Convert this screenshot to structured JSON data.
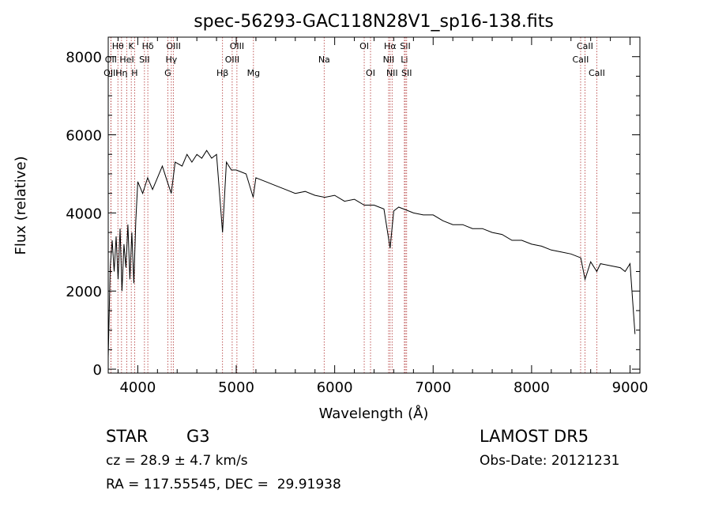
{
  "chart_data": {
    "type": "line",
    "title": "spec-56293-GAC118N28V1_sp16-138.fits",
    "xlabel": "Wavelength (Å)",
    "ylabel": "Flux (relative)",
    "xlim": [
      3700,
      9100
    ],
    "ylim": [
      -100,
      8500
    ],
    "x_ticks": [
      4000,
      5000,
      6000,
      7000,
      8000,
      9000
    ],
    "x_tick_labels": [
      "4000",
      "5000",
      "6000",
      "7000",
      "8000",
      "9000"
    ],
    "y_ticks": [
      0,
      2000,
      4000,
      6000,
      8000
    ],
    "y_tick_labels": [
      "0",
      "2000",
      "4000",
      "6000",
      "8000"
    ],
    "line_color": "#000000",
    "marker_color": "#b03030",
    "series": [
      {
        "x": [
          3700,
          3720,
          3740,
          3760,
          3780,
          3800,
          3820,
          3840,
          3860,
          3880,
          3900,
          3920,
          3940,
          3960,
          3980,
          4000,
          4050,
          4100,
          4150,
          4200,
          4250,
          4300,
          4340,
          4380,
          4450,
          4500,
          4550,
          4600,
          4650,
          4700,
          4750,
          4800,
          4861,
          4900,
          4950,
          5000,
          5100,
          5172,
          5200,
          5300,
          5400,
          5500,
          5600,
          5700,
          5800,
          5900,
          6000,
          6100,
          6200,
          6300,
          6400,
          6500,
          6563,
          6600,
          6650,
          6700,
          6800,
          6900,
          7000,
          7100,
          7200,
          7300,
          7400,
          7500,
          7600,
          7700,
          7800,
          7900,
          8000,
          8100,
          8200,
          8300,
          8400,
          8500,
          8542,
          8600,
          8662,
          8700,
          8800,
          8900,
          8950,
          9000,
          9050
        ],
        "y": [
          300,
          2600,
          3300,
          2500,
          3400,
          2300,
          3600,
          2000,
          3200,
          2600,
          3700,
          2300,
          3500,
          2200,
          3800,
          4800,
          4500,
          4900,
          4600,
          4900,
          5200,
          4800,
          4500,
          5300,
          5200,
          5500,
          5300,
          5500,
          5400,
          5600,
          5400,
          5500,
          3500,
          5300,
          5100,
          5100,
          5000,
          4400,
          4900,
          4800,
          4700,
          4600,
          4500,
          4550,
          4450,
          4400,
          4450,
          4300,
          4350,
          4200,
          4200,
          4100,
          3100,
          4050,
          4150,
          4100,
          4000,
          3950,
          3950,
          3800,
          3700,
          3700,
          3600,
          3600,
          3500,
          3450,
          3300,
          3300,
          3200,
          3150,
          3050,
          3000,
          2950,
          2850,
          2300,
          2750,
          2500,
          2700,
          2650,
          2600,
          2500,
          2700,
          900
        ]
      }
    ],
    "line_markers": [
      {
        "label": "Hθ",
        "x": 3798,
        "row": 0
      },
      {
        "label": "OII",
        "x": 3727,
        "row": 1
      },
      {
        "label": "OIII",
        "x": 3727,
        "row": 2
      },
      {
        "label": "K",
        "x": 3934,
        "row": 0
      },
      {
        "label": "HeI",
        "x": 3889,
        "row": 1
      },
      {
        "label": "Hη",
        "x": 3835,
        "row": 2
      },
      {
        "label": "H",
        "x": 3968,
        "row": 2
      },
      {
        "label": "Hδ",
        "x": 4102,
        "row": 0
      },
      {
        "label": "SII",
        "x": 4068,
        "row": 1
      },
      {
        "label": "OIII",
        "x": 4363,
        "row": 0
      },
      {
        "label": "Hγ",
        "x": 4341,
        "row": 1
      },
      {
        "label": "G",
        "x": 4305,
        "row": 2
      },
      {
        "label": "OIII",
        "x": 5007,
        "row": 0
      },
      {
        "label": "OIII",
        "x": 4959,
        "row": 1
      },
      {
        "label": "Hβ",
        "x": 4861,
        "row": 2
      },
      {
        "label": "Mg",
        "x": 5175,
        "row": 2
      },
      {
        "label": "Na",
        "x": 5893,
        "row": 1
      },
      {
        "label": "OI",
        "x": 6300,
        "row": 0
      },
      {
        "label": "OI",
        "x": 6364,
        "row": 2
      },
      {
        "label": "Hα",
        "x": 6563,
        "row": 0
      },
      {
        "label": "SII",
        "x": 6717,
        "row": 0
      },
      {
        "label": "NII",
        "x": 6548,
        "row": 1
      },
      {
        "label": "Li",
        "x": 6708,
        "row": 1
      },
      {
        "label": "NII",
        "x": 6583,
        "row": 2
      },
      {
        "label": "SII",
        "x": 6731,
        "row": 2
      },
      {
        "label": "CaII",
        "x": 8542,
        "row": 0
      },
      {
        "label": "CaII",
        "x": 8498,
        "row": 1
      },
      {
        "label": "CaII",
        "x": 8662,
        "row": 2
      }
    ]
  },
  "info": {
    "object_class": "STAR",
    "subclass": "G3",
    "survey": "LAMOST DR5",
    "cz": "cz = 28.9 ± 4.7 km/s",
    "obs_date": "Obs-Date: 20121231",
    "coords": "RA = 117.55545, DEC =  29.91938"
  }
}
